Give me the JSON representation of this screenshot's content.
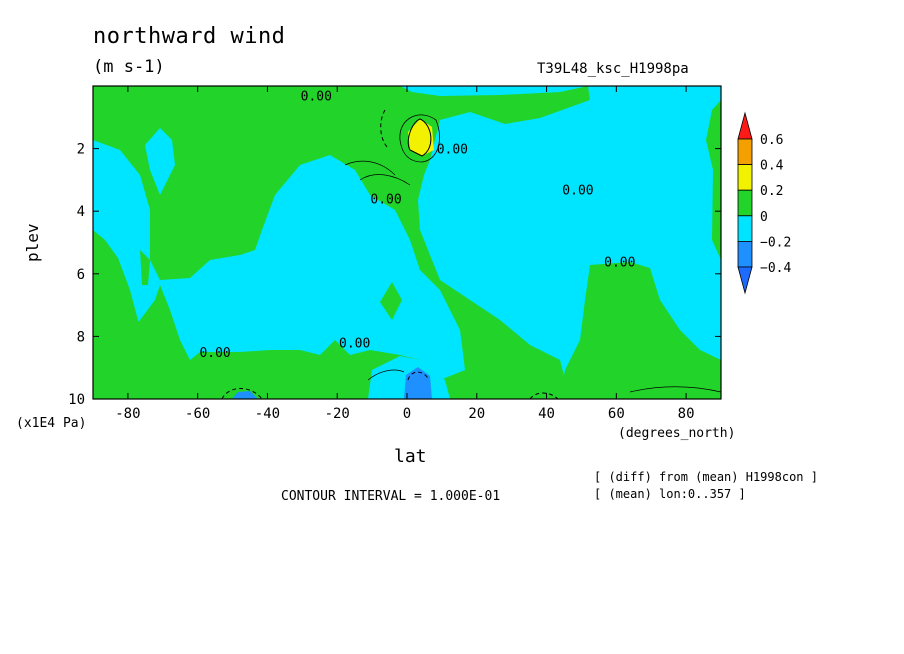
{
  "title": "northward wind",
  "units": "(m s-1)",
  "experiment": "T39L48_ksc_H1998pa",
  "contour_interval": "CONTOUR INTERVAL = 1.000E-01",
  "notes": [
    "[ (diff) from (mean) H1998con ]",
    "[ (mean) lon:0..357 ]"
  ],
  "colors": {
    "-0.4": "#1e90ff",
    "-0.2": "#1e90ff",
    "below_-0.4": "#1e6cff",
    "-0.2_to_0": "#00e5ff",
    "0_to_0.2": "#22d42a",
    "0.2_to_0.4": "#f2f200",
    "0.4_to_0.6": "#f4a000",
    "above_0.6": "#ff1a1a"
  },
  "chart_data": {
    "type": "heatmap",
    "xlabel": "lat",
    "x_units": "(degrees_north)",
    "ylabel": "plev",
    "y_units": "(x1E4 Pa)",
    "xlim": [
      -90,
      90
    ],
    "ylim": [
      10,
      0
    ],
    "x_ticks": [
      -80,
      -60,
      -40,
      -20,
      0,
      20,
      40,
      60,
      80
    ],
    "y_ticks": [
      2,
      4,
      6,
      8,
      10
    ],
    "colorbar": {
      "levels": [
        -0.4,
        -0.2,
        0,
        0.2,
        0.4,
        0.6
      ],
      "labels": [
        "-0.4",
        "-0.2",
        "0",
        "0.2",
        "0.4",
        "0.6"
      ],
      "colors": [
        "#1e90ff",
        "#00e5ff",
        "#22d42a",
        "#f2f200",
        "#f4a000"
      ],
      "under_color": "#1e6cff",
      "over_color": "#ff1a1a"
    },
    "contour_labels": [
      {
        "text": "0.00",
        "lat": -26,
        "plev": 0.3
      },
      {
        "text": "0.00",
        "lat": 13,
        "plev": 2.0
      },
      {
        "text": "0.00",
        "lat": -6,
        "plev": 3.6
      },
      {
        "text": "0.00",
        "lat": 49,
        "plev": 3.3
      },
      {
        "text": "0.00",
        "lat": 61,
        "plev": 5.6
      },
      {
        "text": "0.00",
        "lat": -55,
        "plev": 8.5
      },
      {
        "text": "0.00",
        "lat": -15,
        "plev": 8.2
      }
    ],
    "features": [
      {
        "value_range": "0.2 to 0.4",
        "lat": 4,
        "plev": 1.8
      },
      {
        "value_range": "-0.4 to -0.2",
        "lat": 4,
        "plev": 9.6
      }
    ]
  }
}
